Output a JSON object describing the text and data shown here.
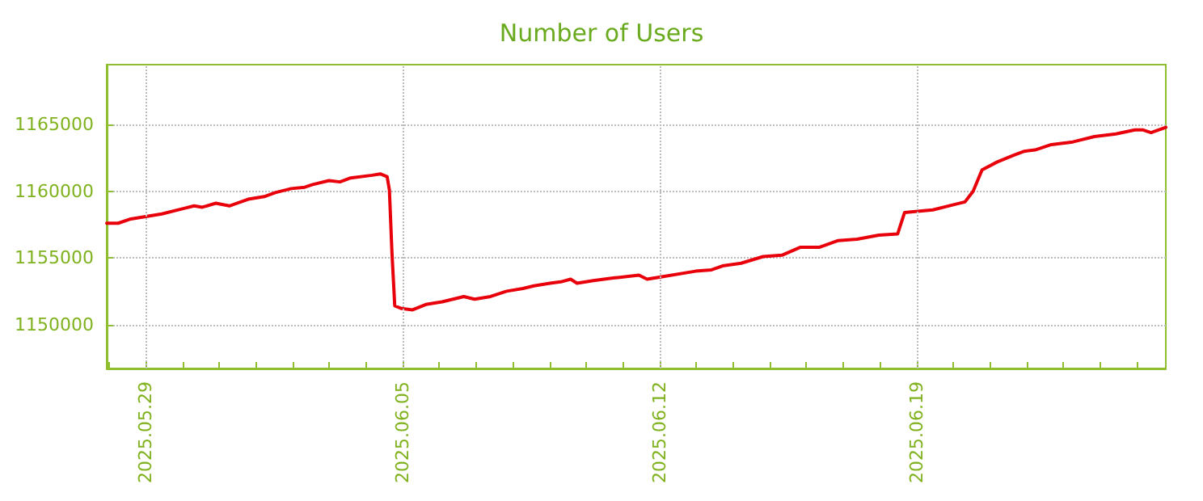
{
  "chart_data": {
    "type": "line",
    "title": "Number of Users",
    "x": [
      "2025-05-27T22:30",
      "2025-05-28T06:00",
      "2025-05-28T13:30",
      "2025-05-29T00:00",
      "2025-05-29T10:30",
      "2025-05-30T00:30",
      "2025-05-30T07:40",
      "2025-05-30T13:00",
      "2025-05-30T21:50",
      "2025-05-31T06:40",
      "2025-05-31T19:00",
      "2025-06-01T05:30",
      "2025-06-01T12:40",
      "2025-06-01T23:10",
      "2025-06-02T08:00",
      "2025-06-02T13:10",
      "2025-06-02T23:50",
      "2025-06-03T07:00",
      "2025-06-03T14:00",
      "2025-06-04T04:00",
      "2025-06-04T09:20",
      "2025-06-04T13:50",
      "2025-06-04T15:20",
      "2025-06-04T17:00",
      "2025-06-04T18:50",
      "2025-06-04T23:20",
      "2025-06-05T06:30",
      "2025-06-05T15:10",
      "2025-06-06T01:50",
      "2025-06-06T16:00",
      "2025-06-06T23:00",
      "2025-06-07T09:30",
      "2025-06-07T20:00",
      "2025-06-08T06:40",
      "2025-06-08T13:50",
      "2025-06-09T00:20",
      "2025-06-09T07:20",
      "2025-06-09T13:50",
      "2025-06-09T18:00",
      "2025-06-10T04:40",
      "2025-06-10T18:40",
      "2025-06-11T10:30",
      "2025-06-11T15:50",
      "2025-06-12T02:20",
      "2025-06-12T23:30",
      "2025-06-13T10:00",
      "2025-06-13T17:10",
      "2025-06-14T05:20",
      "2025-06-14T19:40",
      "2025-06-15T08:00",
      "2025-06-15T20:10",
      "2025-06-16T08:40",
      "2025-06-16T20:50",
      "2025-06-17T09:10",
      "2025-06-17T23:20",
      "2025-06-18T11:40",
      "2025-06-18T16:10",
      "2025-06-19T10:40",
      "2025-06-20T00:40",
      "2025-06-20T07:40",
      "2025-06-20T13:00",
      "2025-06-20T18:50",
      "2025-06-21T04:50",
      "2025-06-21T15:30",
      "2025-06-21T22:30",
      "2025-06-22T05:30",
      "2025-06-22T16:10",
      "2025-06-23T06:10",
      "2025-06-23T20:20",
      "2025-06-24T10:20",
      "2025-06-24T22:50",
      "2025-06-25T04:10",
      "2025-06-25T09:20",
      "2025-06-25T19:00"
    ],
    "series": [
      {
        "color": "#e8000b",
        "values": [
          1157600,
          1157600,
          1157900,
          1158100,
          1158300,
          1158700,
          1158900,
          1158800,
          1159100,
          1158900,
          1159400,
          1159600,
          1159900,
          1160200,
          1160300,
          1160500,
          1160800,
          1160700,
          1161000,
          1161200,
          1161300,
          1161100,
          1160100,
          1155400,
          1151400,
          1151200,
          1151100,
          1151500,
          1151700,
          1152100,
          1151900,
          1152100,
          1152500,
          1152700,
          1152900,
          1153100,
          1153200,
          1153400,
          1153100,
          1153300,
          1153500,
          1153700,
          1153400,
          1153600,
          1154000,
          1154100,
          1154400,
          1154600,
          1155100,
          1155200,
          1155800,
          1155800,
          1156300,
          1156400,
          1156700,
          1156800,
          1158400,
          1158600,
          1159000,
          1159200,
          1160000,
          1161600,
          1162200,
          1162700,
          1163000,
          1163100,
          1163500,
          1163700,
          1164100,
          1164300,
          1164600,
          1164600,
          1164400,
          1164800
        ]
      }
    ],
    "xlim": [
      "2025-05-27T22:30",
      "2025-06-25T19:00"
    ],
    "xticks": [
      {
        "value": "2025-05-28",
        "label": null
      },
      {
        "value": "2025-05-29",
        "label": "2025.05.29"
      },
      {
        "value": "2025-05-30",
        "label": null
      },
      {
        "value": "2025-05-31",
        "label": null
      },
      {
        "value": "2025-06-01",
        "label": null
      },
      {
        "value": "2025-06-02",
        "label": null
      },
      {
        "value": "2025-06-03",
        "label": null
      },
      {
        "value": "2025-06-04",
        "label": null
      },
      {
        "value": "2025-06-05",
        "label": "2025.06.05"
      },
      {
        "value": "2025-06-06",
        "label": null
      },
      {
        "value": "2025-06-07",
        "label": null
      },
      {
        "value": "2025-06-08",
        "label": null
      },
      {
        "value": "2025-06-09",
        "label": null
      },
      {
        "value": "2025-06-10",
        "label": null
      },
      {
        "value": "2025-06-11",
        "label": null
      },
      {
        "value": "2025-06-12",
        "label": "2025.06.12"
      },
      {
        "value": "2025-06-13",
        "label": null
      },
      {
        "value": "2025-06-14",
        "label": null
      },
      {
        "value": "2025-06-15",
        "label": null
      },
      {
        "value": "2025-06-16",
        "label": null
      },
      {
        "value": "2025-06-17",
        "label": null
      },
      {
        "value": "2025-06-18",
        "label": null
      },
      {
        "value": "2025-06-19",
        "label": "2025.06.19"
      },
      {
        "value": "2025-06-20",
        "label": null
      },
      {
        "value": "2025-06-21",
        "label": null
      },
      {
        "value": "2025-06-22",
        "label": null
      },
      {
        "value": "2025-06-23",
        "label": null
      },
      {
        "value": "2025-06-24",
        "label": null
      },
      {
        "value": "2025-06-25",
        "label": null
      }
    ],
    "ylim": [
      1146700,
      1169500
    ],
    "yticks": [
      1150000,
      1155000,
      1160000,
      1165000
    ],
    "grid": true,
    "marker": "none",
    "line_style": "solid"
  }
}
